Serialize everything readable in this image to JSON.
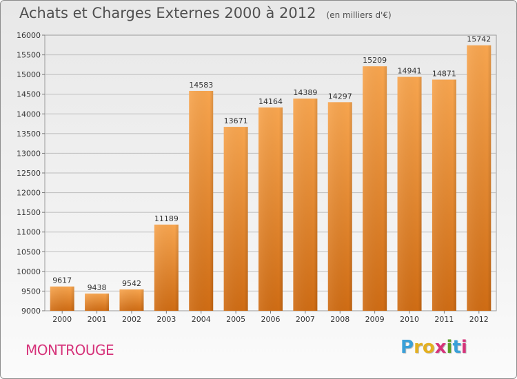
{
  "chart_data": {
    "type": "bar",
    "title": "Achats et Charges Externes 2000 à 2012",
    "unit_note": "(en milliers d'€)",
    "categories": [
      "2000",
      "2001",
      "2002",
      "2003",
      "2004",
      "2005",
      "2006",
      "2007",
      "2008",
      "2009",
      "2010",
      "2011",
      "2012"
    ],
    "values": [
      9617,
      9438,
      9542,
      11189,
      14583,
      13671,
      14164,
      14389,
      14297,
      15209,
      14941,
      14871,
      15742
    ],
    "ylim": [
      9000,
      16000
    ],
    "yticks": [
      9000,
      9500,
      10000,
      10500,
      11000,
      11500,
      12000,
      12500,
      13000,
      13500,
      14000,
      14500,
      15000,
      15500,
      16000
    ],
    "grid": true,
    "bar_color_top": "#f7a54f",
    "bar_color_bottom": "#cf6c14"
  },
  "footer": {
    "city": "MONTROUGE",
    "logo": [
      "P",
      "r",
      "o",
      "x",
      "i",
      "t",
      "i"
    ],
    "logo_colors": [
      "#3aa0d8",
      "#e4b020",
      "#e4b020",
      "#d6337a",
      "#5a9e2a",
      "#3aa0d8",
      "#d6337a"
    ]
  }
}
